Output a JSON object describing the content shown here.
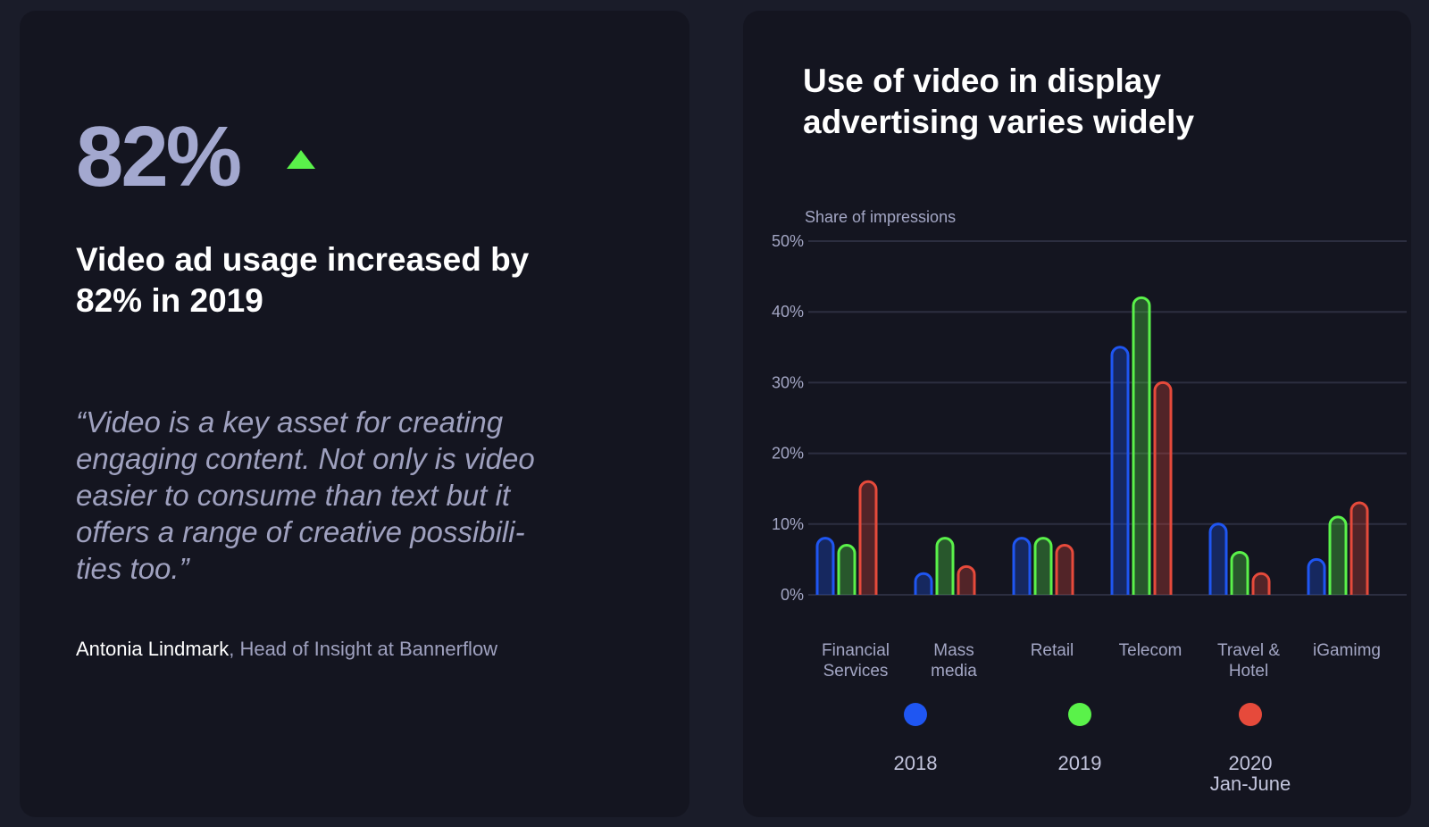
{
  "stat": {
    "value": "82%",
    "indicator": "up-arrow-icon",
    "indicator_color": "#5af24a"
  },
  "headline": "Video ad usage increased by 82% in 2019",
  "quote": "“Video is a key asset for creating\nengaging content. Not only is video\neasier to consume than text but it\noffers a range of creative possibili-\nties too.”",
  "attribution": {
    "name": "Antonia Lindmark",
    "role": ", Head of Insight at Bannerflow"
  },
  "chart_data": {
    "type": "bar",
    "title": "Use of video in display advertising varies widely",
    "ylabel": "Share of impressions",
    "ylim": [
      0,
      50
    ],
    "yticks": [
      "0%",
      "10%",
      "20%",
      "30%",
      "40%",
      "50%"
    ],
    "categories": [
      "Financial\nServices",
      "Mass\nmedia",
      "Retail",
      "Telecom",
      "Travel &\nHotel",
      "iGamimg"
    ],
    "series": [
      {
        "name": "2018",
        "color": "#1f56f2",
        "values": [
          8,
          3,
          8,
          35,
          10,
          5
        ]
      },
      {
        "name": "2019",
        "color": "#5af24a",
        "values": [
          7,
          8,
          8,
          42,
          6,
          11
        ]
      },
      {
        "name": "2020\nJan-June",
        "color": "#e64a3b",
        "values": [
          16,
          4,
          7,
          30,
          3,
          13
        ]
      }
    ],
    "grid": true,
    "legend": "bottom"
  }
}
